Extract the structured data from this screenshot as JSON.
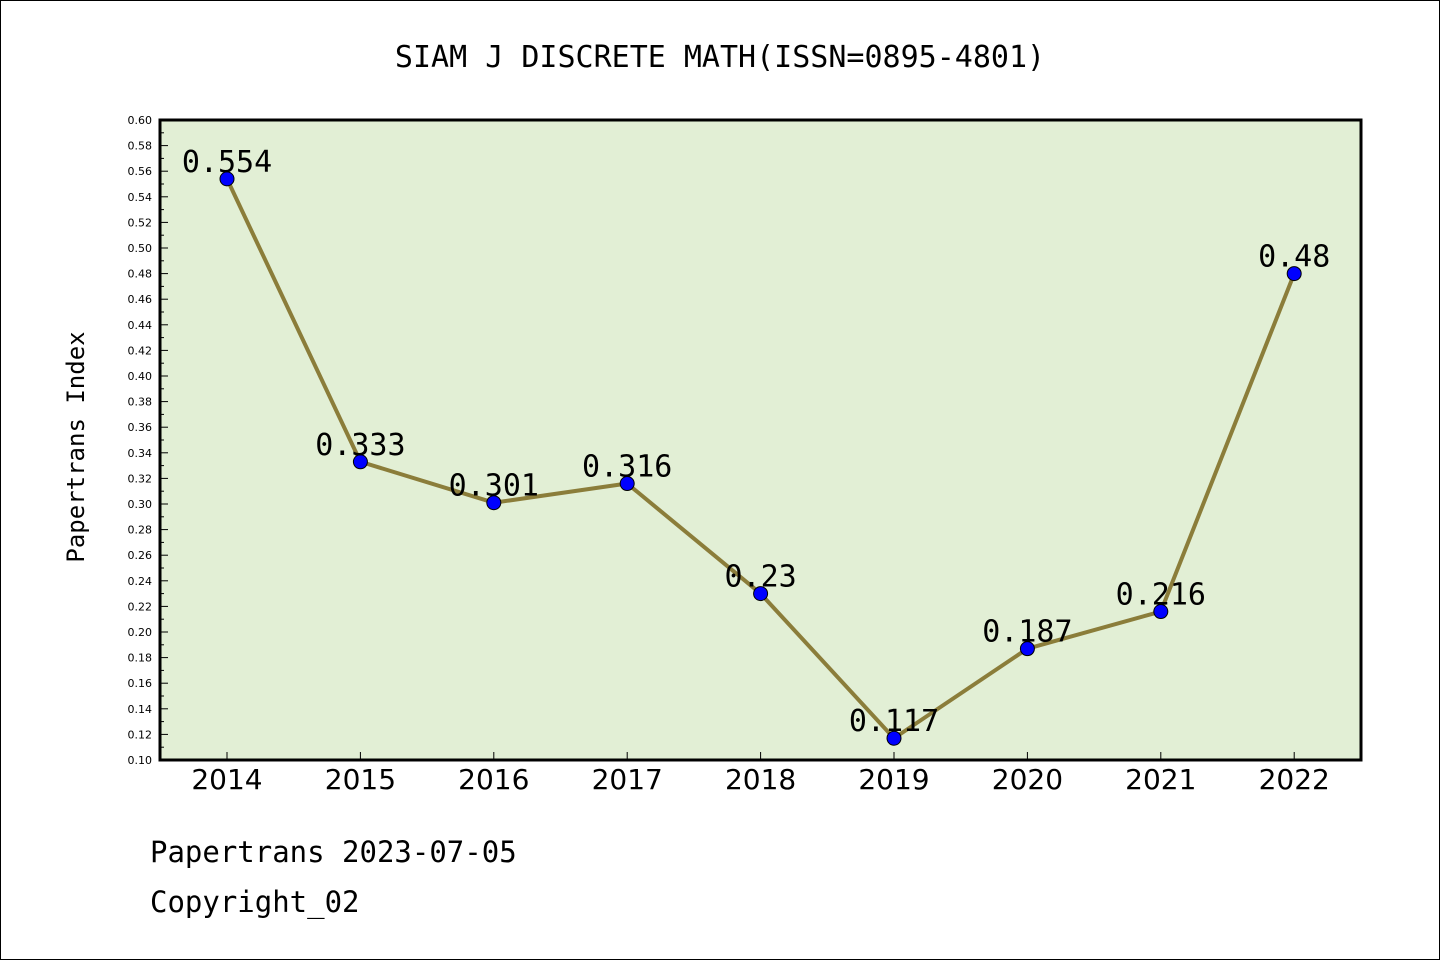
{
  "chart_data": {
    "type": "line",
    "title": "SIAM J DISCRETE MATH(ISSN=0895-4801)",
    "xlabel": "",
    "ylabel": "Papertrans Index",
    "categories": [
      "2014",
      "2015",
      "2016",
      "2017",
      "2018",
      "2019",
      "2020",
      "2021",
      "2022"
    ],
    "series": [
      {
        "values": [
          0.554,
          0.333,
          0.301,
          0.316,
          0.23,
          0.117,
          0.187,
          0.216,
          0.48
        ],
        "labels": [
          "0.554",
          "0.333",
          "0.301",
          "0.316",
          "0.23",
          "0.117",
          "0.187",
          "0.216",
          "0.48"
        ]
      }
    ],
    "ylim": [
      0.1,
      0.6
    ],
    "yticks": [
      "0.10",
      "0.12",
      "0.14",
      "0.16",
      "0.18",
      "0.20",
      "0.22",
      "0.24",
      "0.26",
      "0.28",
      "0.30",
      "0.32",
      "0.34",
      "0.36",
      "0.38",
      "0.40",
      "0.42",
      "0.44",
      "0.46",
      "0.48",
      "0.50",
      "0.52",
      "0.54",
      "0.56",
      "0.58",
      "0.60"
    ],
    "grid": false,
    "colors": {
      "plot_background": "#e2efd5",
      "line": "#8b7d3a",
      "marker": "#0000ff"
    }
  },
  "footer": {
    "line1": "Papertrans 2023-07-05",
    "line2": "Copyright_02"
  }
}
